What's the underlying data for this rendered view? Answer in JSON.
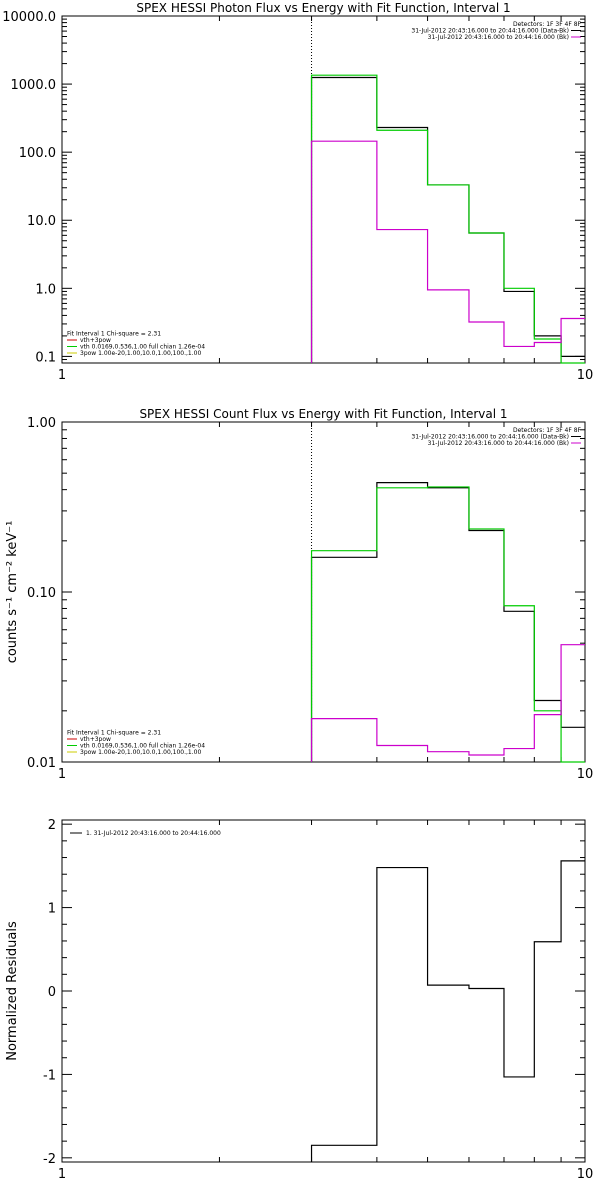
{
  "chart_data": [
    {
      "type": "line",
      "step": true,
      "title": "SPEX HESSI Photon Flux vs Energy with Fit Function, Interval 1",
      "xlabel": "",
      "ylabel": "",
      "xscale": "log",
      "yscale": "log",
      "xlim": [
        1,
        10
      ],
      "ylim": [
        0.08,
        10000
      ],
      "xticks": [
        {
          "v": 1,
          "label": "1"
        },
        {
          "v": 10,
          "label": "10"
        }
      ],
      "yticks": [
        {
          "v": 0.1,
          "label": "0.1"
        },
        {
          "v": 1,
          "label": "1.0"
        },
        {
          "v": 10,
          "label": "10.0"
        },
        {
          "v": 100,
          "label": "100.0"
        },
        {
          "v": 1000,
          "label": "1000.0"
        },
        {
          "v": 10000,
          "label": "10000.0"
        }
      ],
      "marker_line_x": 3,
      "legend_top_right": [
        {
          "text": "Detectors: 1F 3F 4F 8F",
          "color": ""
        },
        {
          "text": "31-Jul-2012 20:43:16.000 to 20:44:16.000 (Data-Bk)",
          "color": "#000000"
        },
        {
          "text": "31-Jul-2012 20:43:16.000 to 20:44:16.000 (Bk)",
          "color": "#cc00cc"
        }
      ],
      "legend_bottom_left": [
        {
          "text": "Fit Interval 1    Chi-square = 2.31",
          "color": ""
        },
        {
          "text": "vth+3pow",
          "color": "#cc0000"
        },
        {
          "text": "vth 0.0169,0.536,1.00  full chian 1.26e-04",
          "color": "#00cc00"
        },
        {
          "text": "3pow 1.00e-20,1.00,10.0,1.00,100.,1.00",
          "color": "#cccc00"
        }
      ],
      "bin_edges": [
        3,
        4,
        5,
        6,
        7,
        8,
        9,
        10
      ],
      "series": [
        {
          "name": "",
          "color": "#000000",
          "values": [
            1250,
            230,
            33,
            6.5,
            0.9,
            0.2,
            0.1
          ]
        },
        {
          "name": "",
          "color": "#00cc00",
          "values": [
            1350,
            210,
            33,
            6.5,
            1.0,
            0.18,
            0.08
          ]
        },
        {
          "name": "",
          "color": "#cc00cc",
          "values": [
            145,
            7.3,
            0.95,
            0.32,
            0.14,
            0.16,
            0.36
          ]
        }
      ]
    },
    {
      "type": "line",
      "step": true,
      "title": "SPEX HESSI Count Flux vs Energy with Fit Function, Interval 1",
      "xlabel": "",
      "ylabel": "counts s⁻¹ cm⁻² keV⁻¹",
      "xscale": "log",
      "yscale": "log",
      "xlim": [
        1,
        10
      ],
      "ylim": [
        0.01,
        1.0
      ],
      "xticks": [
        {
          "v": 1,
          "label": "1"
        },
        {
          "v": 10,
          "label": "10"
        }
      ],
      "yticks": [
        {
          "v": 0.01,
          "label": "0.01"
        },
        {
          "v": 0.1,
          "label": "0.10"
        },
        {
          "v": 1,
          "label": "1.00"
        }
      ],
      "marker_line_x": 3,
      "legend_top_right": [
        {
          "text": "Detectors: 1F 3F 4F 8F",
          "color": ""
        },
        {
          "text": "31-Jul-2012 20:43:16.000 to 20:44:16.000 (Data-Bk)",
          "color": "#000000"
        },
        {
          "text": "31-Jul-2012 20:43:16.000 to 20:44:16.000 (Bk)",
          "color": "#cc00cc"
        }
      ],
      "legend_bottom_left": [
        {
          "text": "Fit Interval 1    Chi-square = 2.31",
          "color": ""
        },
        {
          "text": "vth+3pow",
          "color": "#cc0000"
        },
        {
          "text": "vth 0.0169,0.536,1.00  full chian 1.26e-04",
          "color": "#00cc00"
        },
        {
          "text": "3pow 1.00e-20,1.00,10.0,1.00,100.,1.00",
          "color": "#cccc00"
        }
      ],
      "bin_edges": [
        3,
        4,
        5,
        6,
        7,
        8,
        9,
        10
      ],
      "series": [
        {
          "name": "",
          "color": "#000000",
          "values": [
            0.16,
            0.44,
            0.41,
            0.23,
            0.077,
            0.023,
            0.016
          ]
        },
        {
          "name": "",
          "color": "#00cc00",
          "values": [
            0.175,
            0.41,
            0.415,
            0.235,
            0.083,
            0.02,
            0.01
          ]
        },
        {
          "name": "",
          "color": "#cc00cc",
          "values": [
            0.018,
            0.0125,
            0.0115,
            0.011,
            0.012,
            0.019,
            0.049
          ]
        }
      ]
    },
    {
      "type": "line",
      "step": true,
      "title": "",
      "xlabel": "",
      "ylabel": "Normalized Residuals",
      "xscale": "log",
      "yscale": "linear",
      "xlim": [
        1,
        10
      ],
      "ylim": [
        -2.05,
        2.05
      ],
      "xticks": [
        {
          "v": 1,
          "label": "1"
        },
        {
          "v": 10,
          "label": "10"
        }
      ],
      "yticks": [
        {
          "v": -2,
          "label": "-2"
        },
        {
          "v": -1,
          "label": "-1"
        },
        {
          "v": 0,
          "label": "0"
        },
        {
          "v": 1,
          "label": "1"
        },
        {
          "v": 2,
          "label": "2"
        }
      ],
      "legend_top_left": [
        {
          "text": "1. 31-Jul-2012 20:43:16.000 to 20:44:16.000",
          "color": "#000000"
        }
      ],
      "bin_edges": [
        3,
        4,
        5,
        6,
        7,
        8,
        9,
        10
      ],
      "series": [
        {
          "name": "",
          "color": "#000000",
          "values": [
            -1.85,
            1.48,
            0.07,
            0.03,
            -1.03,
            0.59,
            1.56
          ]
        }
      ]
    }
  ]
}
